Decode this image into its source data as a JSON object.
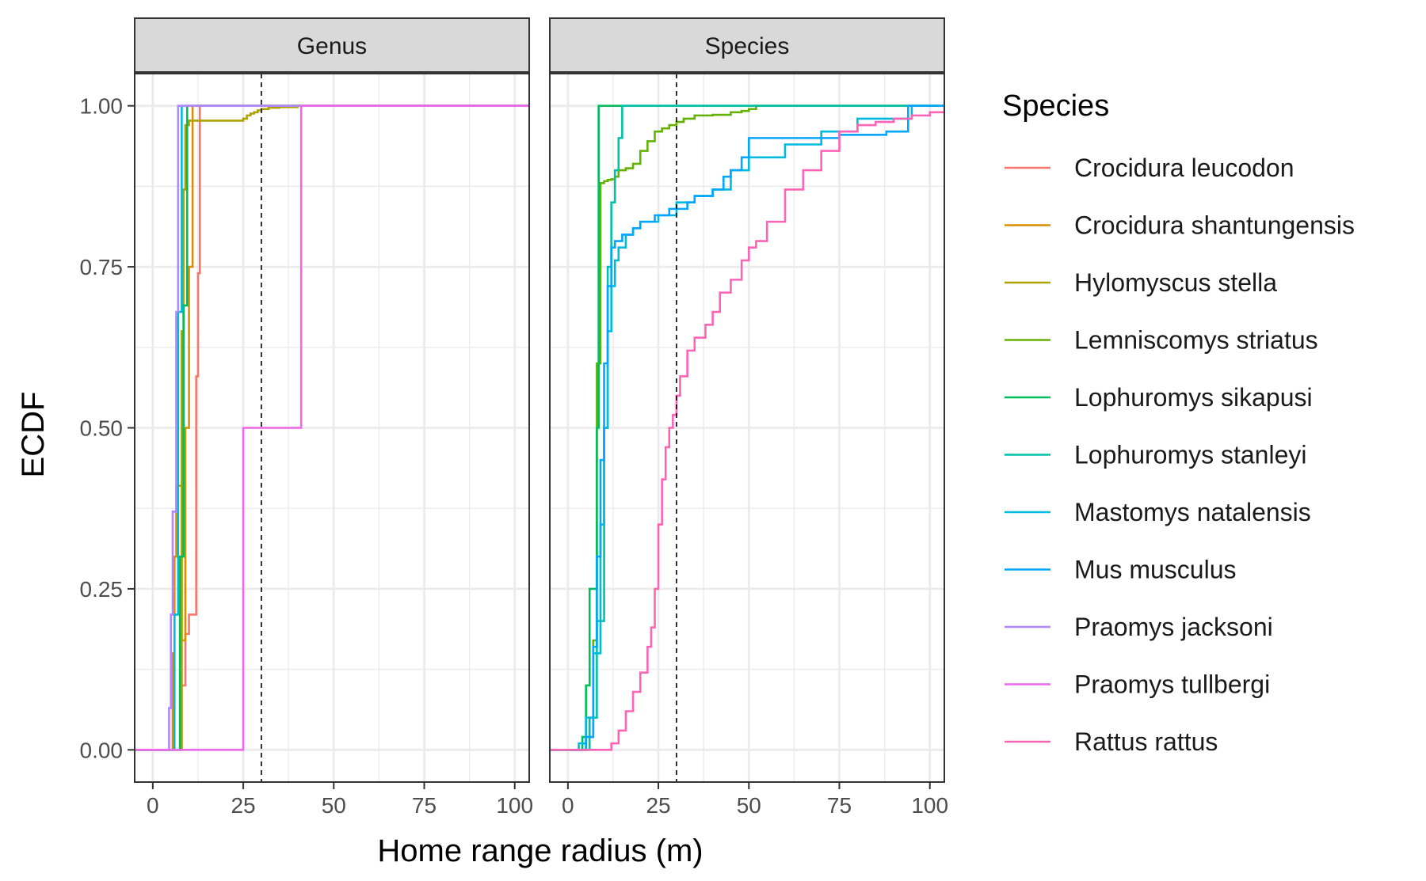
{
  "chart_data": {
    "type": "line",
    "step": true,
    "xlabel": "Home range radius (m)",
    "ylabel": "ECDF",
    "xlim": [
      -5,
      104
    ],
    "ylim": [
      -0.05,
      1.05
    ],
    "xticks": [
      0,
      25,
      50,
      75,
      100
    ],
    "xtick_labels": [
      "0",
      "25",
      "50",
      "75",
      "100"
    ],
    "yticks": [
      0,
      0.25,
      0.5,
      0.75,
      1.0
    ],
    "ytick_labels": [
      "0.00",
      "0.25",
      "0.50",
      "0.75",
      "1.00"
    ],
    "grid": true,
    "reference_line": {
      "x": 30,
      "style": "dashed"
    },
    "legend": {
      "title": "Species",
      "placement": "right",
      "entries": [
        {
          "name": "Crocidura leucodon",
          "color": "#F8766D"
        },
        {
          "name": "Crocidura shantungensis",
          "color": "#DB8E00"
        },
        {
          "name": "Hylomyscus stella",
          "color": "#AEA200"
        },
        {
          "name": "Lemniscomys striatus",
          "color": "#64B200"
        },
        {
          "name": "Lophuromys sikapusi",
          "color": "#00BD5C"
        },
        {
          "name": "Lophuromys stanleyi",
          "color": "#00C1A7"
        },
        {
          "name": "Mastomys natalensis",
          "color": "#00BADE"
        },
        {
          "name": "Mus musculus",
          "color": "#00A6FF"
        },
        {
          "name": "Praomys jacksoni",
          "color": "#B385FF"
        },
        {
          "name": "Praomys tullbergi",
          "color": "#EF67EB"
        },
        {
          "name": "Rattus rattus",
          "color": "#FF63B6"
        }
      ]
    },
    "panels": [
      {
        "name": "Genus",
        "series": [
          {
            "name": "Crocidura leucodon",
            "color": "#F8766D",
            "x": [
              -5,
              7.5,
              8,
              9,
              10,
              11,
              12,
              12.5,
              13,
              104
            ],
            "y": [
              0,
              0,
              0.1,
              0.18,
              0.21,
              0.21,
              0.58,
              0.74,
              1.0,
              1.0
            ]
          },
          {
            "name": "Crocidura shantungensis",
            "color": "#DB8E00",
            "x": [
              -5,
              5,
              5.5,
              6,
              6.5,
              7.5,
              8,
              9,
              10,
              11,
              104
            ],
            "y": [
              0,
              0,
              0.15,
              0.3,
              0.41,
              0.41,
              0.17,
              0.5,
              0.75,
              1.0,
              1.0
            ]
          },
          {
            "name": "Hylomyscus stella",
            "color": "#AEA200",
            "x": [
              -5,
              7,
              8,
              8.5,
              9,
              10,
              23,
              25,
              26,
              27,
              28,
              29,
              30,
              32,
              35,
              40,
              104
            ],
            "y": [
              0,
              0,
              0.65,
              0.87,
              0.97,
              0.977,
              0.977,
              0.98,
              0.985,
              0.988,
              0.99,
              0.993,
              0.995,
              0.997,
              0.998,
              1.0,
              1.0
            ]
          },
          {
            "name": "Lophuromys sikapusi",
            "color": "#00BD5C",
            "x": [
              -5,
              6.5,
              7.5,
              8.5,
              9.5,
              104
            ],
            "y": [
              0,
              0,
              0.3,
              0.69,
              1.0,
              1.0
            ]
          },
          {
            "name": "Mastomys natalensis",
            "color": "#00BADE",
            "x": [
              -5,
              5.5,
              6,
              7,
              8,
              104
            ],
            "y": [
              0,
              0,
              0.21,
              0.68,
              1.0,
              1.0
            ]
          },
          {
            "name": "Praomys jacksoni",
            "color": "#B385FF",
            "x": [
              -5,
              4,
              4.5,
              5,
              5.5,
              6.5,
              7,
              104
            ],
            "y": [
              0,
              0,
              0.065,
              0.21,
              0.37,
              0.68,
              1.0,
              1.0
            ]
          },
          {
            "name": "Praomys tullbergi",
            "color": "#EF67EB",
            "x": [
              -5,
              25,
              41,
              104
            ],
            "y": [
              0,
              0.5,
              1.0,
              1.0
            ]
          }
        ]
      },
      {
        "name": "Species",
        "series": [
          {
            "name": "Lemniscomys striatus",
            "color": "#64B200",
            "x": [
              -5,
              4,
              5,
              7,
              8,
              9,
              10,
              11,
              12,
              13,
              14,
              15,
              16,
              18,
              20,
              22,
              24,
              26,
              28,
              30,
              32,
              35,
              40,
              45,
              48,
              50,
              52,
              104
            ],
            "y": [
              0,
              0,
              0.02,
              0.17,
              0.6,
              0.88,
              0.883,
              0.885,
              0.886,
              0.89,
              0.9,
              0.9,
              0.903,
              0.91,
              0.93,
              0.945,
              0.96,
              0.965,
              0.97,
              0.975,
              0.98,
              0.985,
              0.986,
              0.99,
              0.992,
              0.995,
              1.0,
              1.0
            ]
          },
          {
            "name": "Lophuromys sikapusi",
            "color": "#00BD5C",
            "x": [
              -5,
              3,
              4,
              5,
              6,
              7,
              8,
              8.5,
              104
            ],
            "y": [
              0,
              0,
              0.02,
              0.1,
              0.25,
              0.25,
              0.5,
              1.0,
              1.0
            ]
          },
          {
            "name": "Lophuromys stanleyi",
            "color": "#00C1A7",
            "x": [
              -5,
              4,
              6,
              8,
              10,
              11,
              12,
              13,
              14,
              15,
              104
            ],
            "y": [
              0,
              0,
              0.05,
              0.2,
              0.5,
              0.75,
              0.85,
              0.9,
              0.95,
              1.0,
              1.0
            ]
          },
          {
            "name": "Mastomys natalensis",
            "color": "#00BADE",
            "x": [
              -5,
              2,
              3,
              5,
              7,
              9,
              10,
              11,
              12,
              13,
              14,
              16,
              18,
              20,
              25,
              30,
              35,
              40,
              45,
              50,
              60,
              70,
              80,
              95,
              104
            ],
            "y": [
              0,
              0,
              0.01,
              0.05,
              0.15,
              0.35,
              0.5,
              0.65,
              0.72,
              0.76,
              0.78,
              0.8,
              0.81,
              0.82,
              0.83,
              0.85,
              0.86,
              0.87,
              0.9,
              0.92,
              0.94,
              0.96,
              0.98,
              1.0,
              1.0
            ]
          },
          {
            "name": "Mus musculus",
            "color": "#00A6FF",
            "x": [
              -5,
              2,
              5,
              7,
              8,
              9,
              10,
              11,
              12,
              13,
              15,
              18,
              20,
              24,
              28,
              33,
              35,
              40,
              43,
              45,
              48,
              50,
              75,
              88,
              94,
              104
            ],
            "y": [
              0,
              0,
              0.02,
              0.16,
              0.3,
              0.45,
              0.6,
              0.72,
              0.78,
              0.79,
              0.8,
              0.81,
              0.82,
              0.83,
              0.84,
              0.85,
              0.86,
              0.87,
              0.89,
              0.9,
              0.92,
              0.95,
              0.955,
              0.96,
              1.0,
              1.0
            ]
          },
          {
            "name": "Rattus rattus",
            "color": "#FF63B6",
            "x": [
              -5,
              10,
              12,
              14,
              16,
              18,
              20,
              22,
              23,
              24,
              25,
              26,
              27,
              28,
              29,
              30,
              31,
              33,
              35,
              38,
              40,
              42,
              45,
              48,
              50,
              52,
              55,
              60,
              65,
              70,
              75,
              80,
              85,
              90,
              95,
              100,
              104
            ],
            "y": [
              0,
              0,
              0.01,
              0.03,
              0.06,
              0.09,
              0.12,
              0.16,
              0.19,
              0.25,
              0.35,
              0.42,
              0.47,
              0.5,
              0.52,
              0.55,
              0.58,
              0.62,
              0.64,
              0.66,
              0.68,
              0.71,
              0.73,
              0.76,
              0.78,
              0.79,
              0.82,
              0.87,
              0.9,
              0.93,
              0.96,
              0.97,
              0.975,
              0.98,
              0.985,
              0.99,
              0.99
            ]
          }
        ]
      }
    ]
  }
}
